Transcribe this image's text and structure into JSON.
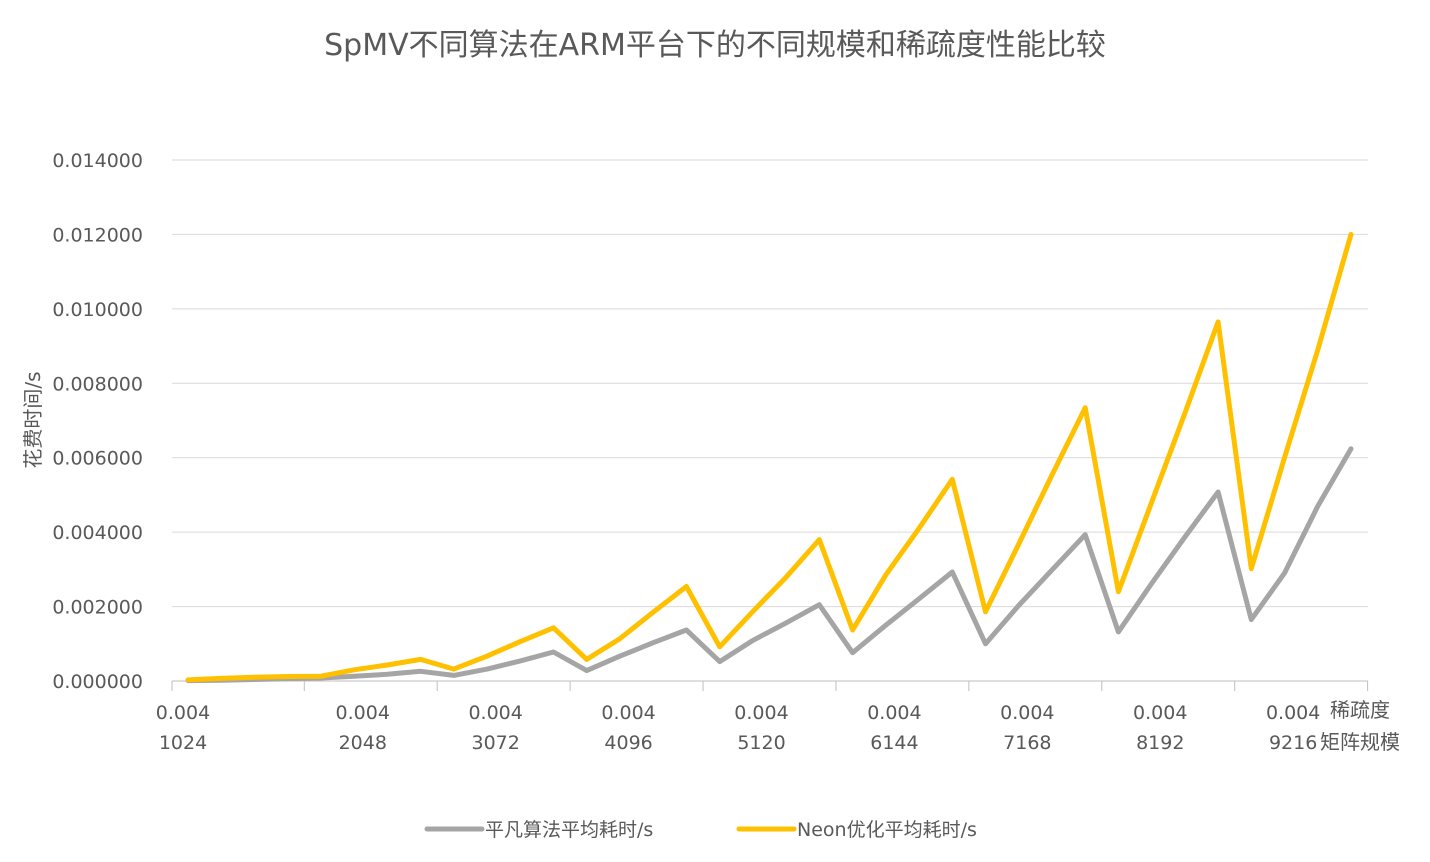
{
  "chart_data": {
    "type": "line",
    "title": "SpMV不同算法在ARM平台下的不同规模和稀疏度性能比较",
    "ylabel": "花费时间/s",
    "xlabel_lines": [
      "稀疏度",
      "矩阵规模"
    ],
    "ylim": [
      0,
      0.014
    ],
    "yticks": [
      "0.000000",
      "0.002000",
      "0.004000",
      "0.006000",
      "0.008000",
      "0.010000",
      "0.012000",
      "0.014000"
    ],
    "grid": true,
    "legend_position": "bottom",
    "group_labels": [
      {
        "sparsity": "0.004",
        "size": "1024"
      },
      {
        "sparsity": "0.004",
        "size": "2048"
      },
      {
        "sparsity": "0.004",
        "size": "3072"
      },
      {
        "sparsity": "0.004",
        "size": "4096"
      },
      {
        "sparsity": "0.004",
        "size": "5120"
      },
      {
        "sparsity": "0.004",
        "size": "6144"
      },
      {
        "sparsity": "0.004",
        "size": "7168"
      },
      {
        "sparsity": "0.004",
        "size": "8192"
      },
      {
        "sparsity": "0.004",
        "size": "9216"
      }
    ],
    "points_per_group": 4,
    "series": [
      {
        "name": "平凡算法平均耗时/s",
        "color": "#a5a5a5",
        "values": [
          1e-05,
          2e-05,
          4e-05,
          6e-05,
          8e-05,
          0.00013,
          0.00018,
          0.00026,
          0.00015,
          0.00032,
          0.00054,
          0.00078,
          0.00028,
          0.00067,
          0.00103,
          0.00137,
          0.00052,
          0.00109,
          0.00156,
          0.00205,
          0.00076,
          0.0015,
          0.00221,
          0.00293,
          0.001,
          0.00203,
          0.00298,
          0.00393,
          0.00132,
          0.00262,
          0.00387,
          0.00508,
          0.00165,
          0.0029,
          0.0047,
          0.00624
        ]
      },
      {
        "name": "Neon优化平均耗时/s",
        "color": "#ffc000",
        "values": [
          3e-05,
          7e-05,
          0.0001,
          0.00012,
          0.00013,
          0.0003,
          0.00043,
          0.00058,
          0.00032,
          0.00067,
          0.00106,
          0.00143,
          0.00058,
          0.00114,
          0.00185,
          0.00254,
          0.00092,
          0.00187,
          0.00279,
          0.0038,
          0.00137,
          0.00285,
          0.0041,
          0.00542,
          0.00186,
          0.00368,
          0.00553,
          0.00734,
          0.0024,
          0.0048,
          0.0072,
          0.00965,
          0.00302,
          0.006,
          0.0089,
          0.012
        ]
      }
    ]
  }
}
